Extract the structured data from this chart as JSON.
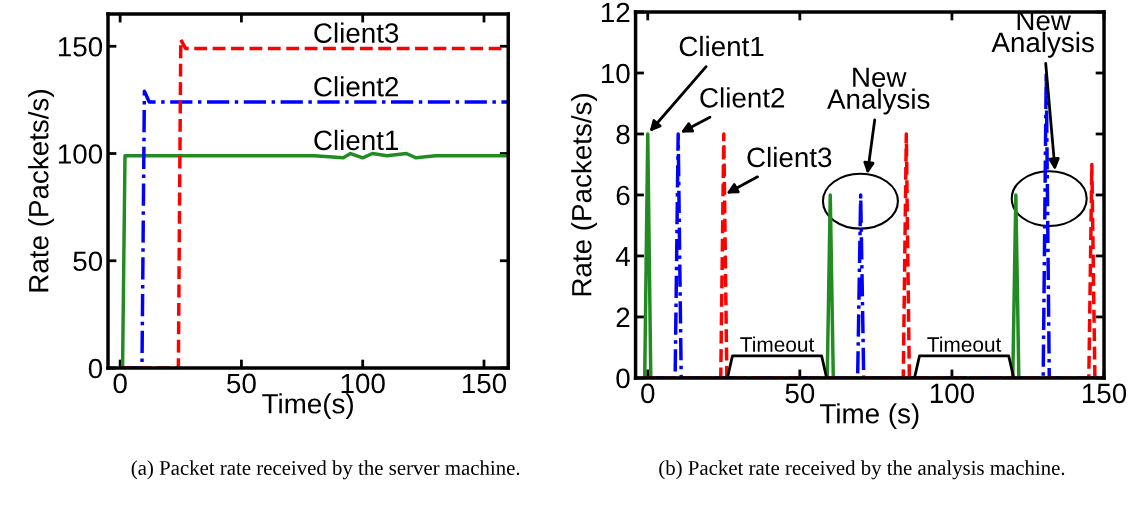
{
  "chart_data": [
    {
      "type": "line",
      "title": "(a) Packet rate received by the server machine.",
      "xlabel": "Time(s)",
      "ylabel": "Rate (Packets/s)",
      "xlim": [
        -5,
        160
      ],
      "ylim": [
        0,
        165
      ],
      "xticks": [
        0,
        50,
        100,
        150
      ],
      "yticks": [
        0,
        50,
        100,
        150
      ],
      "grid": false,
      "legend": false,
      "series": [
        {
          "name": "Client1",
          "color": "#228b22",
          "line_style": "solid",
          "x": [
            0,
            1,
            2,
            20,
            40,
            60,
            80,
            92,
            95,
            100,
            104,
            110,
            118,
            122,
            130,
            145,
            160
          ],
          "values": [
            0,
            0,
            99,
            99,
            99,
            99,
            99,
            98,
            100,
            98,
            100,
            99,
            100,
            98,
            99,
            99,
            99
          ]
        },
        {
          "name": "Client2",
          "color": "#0000ff",
          "line_style": "dashdot",
          "x": [
            0,
            9,
            10,
            12,
            30,
            50,
            70,
            90,
            110,
            130,
            150,
            160
          ],
          "values": [
            0,
            0,
            129,
            124,
            124,
            124,
            124,
            124,
            124,
            124,
            124,
            124
          ]
        },
        {
          "name": "Client3",
          "color": "#ff0000",
          "line_style": "dashed",
          "x": [
            0,
            24,
            25,
            27,
            40,
            60,
            80,
            100,
            120,
            140,
            160
          ],
          "values": [
            0,
            0,
            153,
            149,
            149,
            149,
            149,
            149,
            149,
            149,
            149
          ]
        }
      ]
    },
    {
      "type": "line",
      "title": "(b) Packet rate received by the analysis machine.",
      "xlabel": "Time (s)",
      "ylabel": "Rate (Packets/s)",
      "xlim": [
        -4,
        150
      ],
      "ylim": [
        0,
        12
      ],
      "xticks": [
        0,
        50,
        100,
        150
      ],
      "yticks": [
        0,
        2,
        4,
        6,
        8,
        10,
        12
      ],
      "grid": false,
      "legend": false,
      "series": [
        {
          "color": "#228b22",
          "line_style": "solid",
          "x": [
            -1,
            0,
            1,
            59,
            60,
            61,
            120,
            121,
            122,
            150
          ],
          "values": [
            0,
            8,
            0,
            0,
            6,
            0,
            0,
            6,
            0,
            0
          ]
        },
        {
          "color": "#0000ff",
          "line_style": "dashdot",
          "x": [
            -1,
            9,
            10,
            11,
            69,
            70,
            71,
            130,
            131,
            132,
            150
          ],
          "values": [
            0,
            0,
            8,
            0,
            0,
            6,
            0,
            0,
            10,
            0,
            0
          ]
        },
        {
          "color": "#ff0000",
          "line_style": "dashed",
          "x": [
            -1,
            24,
            25,
            26,
            84,
            85,
            86,
            145,
            146,
            147,
            150
          ],
          "values": [
            0,
            0,
            8,
            0,
            0,
            8,
            0,
            0,
            7,
            0,
            0
          ]
        }
      ],
      "annotations": [
        {
          "text": "Client1",
          "x": 0,
          "y": 8
        },
        {
          "text": "Client2",
          "x": 10,
          "y": 8
        },
        {
          "text": "Client3",
          "x": 25,
          "y": 6
        },
        "New\nAnalysis",
        "New\nAnalysis",
        {
          "text": "Timeout",
          "x": 42.5,
          "y": 0
        },
        {
          "text": "Timeout",
          "x": 104,
          "y": 0
        }
      ]
    }
  ]
}
